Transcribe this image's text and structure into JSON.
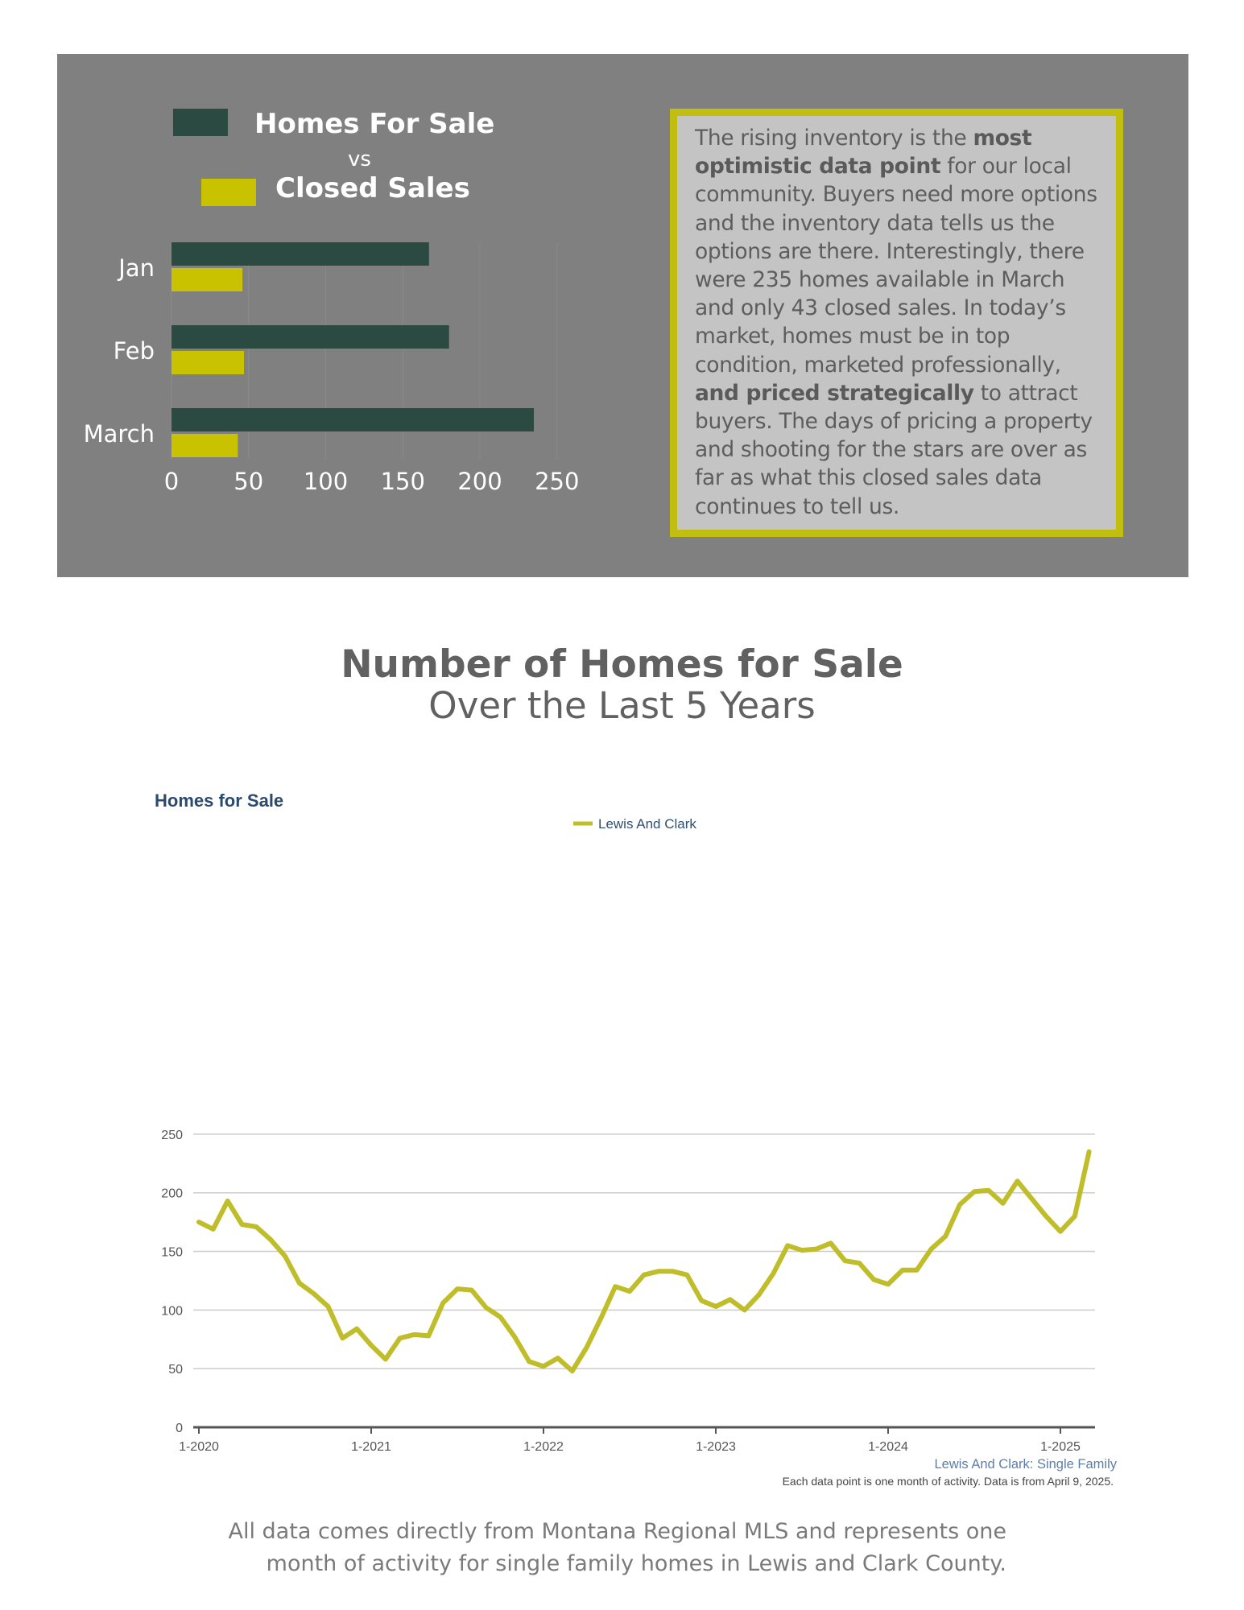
{
  "bar_panel": {
    "legend_series_1": "Homes For Sale",
    "legend_vs": "vs",
    "legend_series_2": "Closed Sales",
    "colors": {
      "panel": "#808080",
      "homes_for_sale": "#2b4a42",
      "closed_sales": "#c9c200"
    }
  },
  "callout": {
    "text_1": "The rising inventory is the ",
    "bold_1": "most optimistic data point",
    "text_2": " for our local community. Buyers need more options and the inventory data tells us the options are there. Interestingly, there were 235 homes available in March and only 43 closed sales. In today’s market, homes must be in top condition, marketed professionally, ",
    "bold_2": "and priced strategically",
    "text_3": " to attract buyers. The days of pricing a property and shooting for the stars are over as far as what this closed sales data continues to tell us.",
    "border_color": "#c2be0f"
  },
  "section": {
    "title": "Number of Homes for Sale",
    "subtitle": "Over the Last 5 Years"
  },
  "footer": {
    "line_1": "All data comes directly from Montana Regional MLS and represents one",
    "line_2": "month of activity for single family homes in Lewis and Clark County."
  },
  "chart_data": [
    {
      "type": "bar",
      "orientation": "horizontal",
      "categories": [
        "Jan",
        "Feb",
        "March"
      ],
      "series": [
        {
          "name": "Homes For Sale",
          "values": [
            167,
            180,
            235
          ],
          "color": "#2b4a42"
        },
        {
          "name": "Closed Sales",
          "values": [
            46,
            47,
            43
          ],
          "color": "#c9c200"
        }
      ],
      "xticks": [
        "0",
        "50",
        "100",
        "150",
        "200",
        "250"
      ],
      "xlim": [
        0,
        250
      ],
      "legend": "top"
    },
    {
      "type": "line",
      "title": "Homes for Sale",
      "series": [
        {
          "name": "Lewis And Clark",
          "color": "#c0bd2a",
          "x_start": "1-2020",
          "x_step": "1 month",
          "values": [
            175,
            169,
            193,
            173,
            171,
            160,
            146,
            123,
            114,
            103,
            76,
            84,
            70,
            58,
            76,
            79,
            78,
            106,
            118,
            117,
            102,
            94,
            77,
            56,
            52,
            59,
            48,
            68,
            93,
            120,
            116,
            130,
            133,
            133,
            130,
            108,
            103,
            109,
            100,
            113,
            131,
            155,
            151,
            152,
            157,
            142,
            140,
            126,
            122,
            134,
            134,
            152,
            163,
            190,
            201,
            202,
            191,
            210,
            195,
            180,
            167,
            180,
            235
          ]
        }
      ],
      "xticks": [
        "1-2020",
        "1-2021",
        "1-2022",
        "1-2023",
        "1-2024",
        "1-2025"
      ],
      "yticks": [
        "0",
        "50",
        "100",
        "150",
        "200",
        "250"
      ],
      "ylim": [
        0,
        250
      ],
      "grid": true,
      "legend": "top-center",
      "region_label": "Lewis And Clark: Single Family",
      "note": "Each data point is one month of activity. Data is from April 9, 2025."
    }
  ]
}
